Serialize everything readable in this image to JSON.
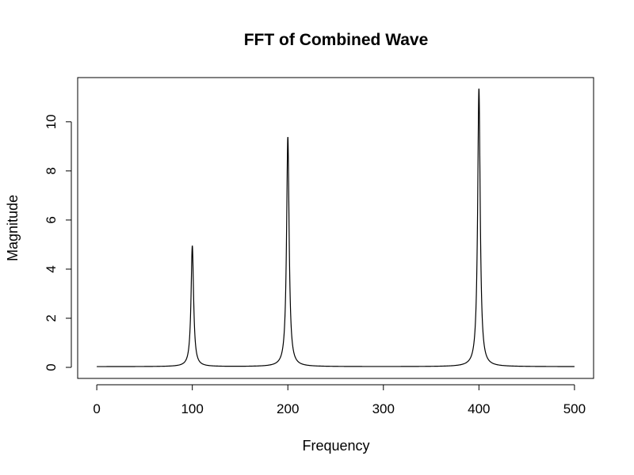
{
  "chart_data": {
    "type": "line",
    "title": "FFT of Combined Wave",
    "xlabel": "Frequency",
    "ylabel": "Magnitude",
    "xlim": [
      -20,
      520
    ],
    "ylim": [
      -0.45,
      11.8
    ],
    "xticks": [
      0,
      100,
      200,
      300,
      400,
      500
    ],
    "yticks": [
      0,
      2,
      4,
      6,
      8,
      10
    ],
    "grid": false,
    "legend": "none",
    "line_color": "#000000",
    "series": [
      {
        "peaks": [
          {
            "frequency": 100,
            "magnitude": 4.95
          },
          {
            "frequency": 200,
            "magnitude": 9.38
          },
          {
            "frequency": 400,
            "magnitude": 11.35
          }
        ],
        "baseline": 0.03,
        "x_range": [
          0,
          500
        ]
      }
    ]
  }
}
